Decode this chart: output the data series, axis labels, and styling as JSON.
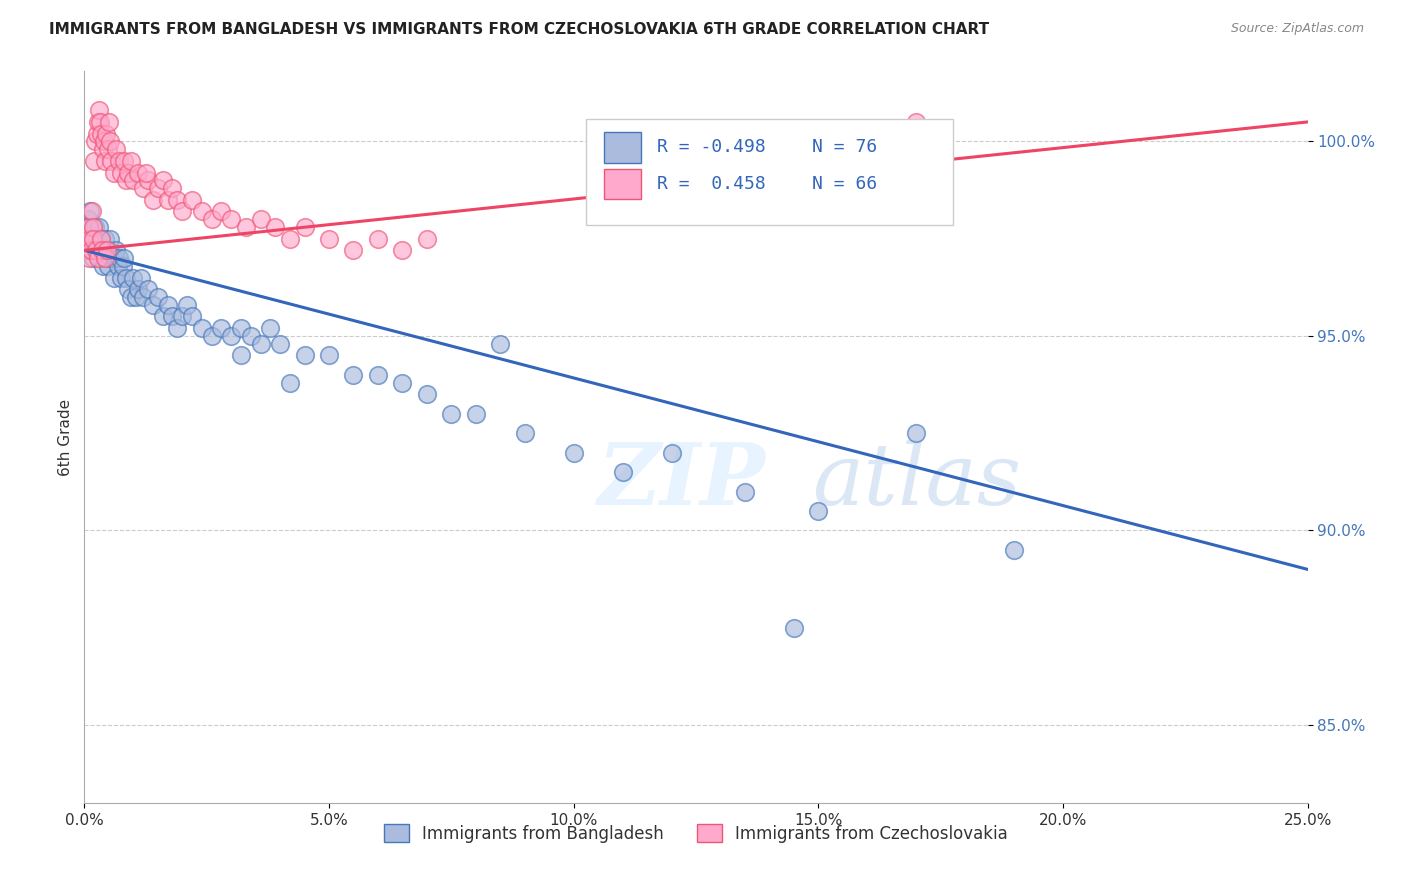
{
  "title": "IMMIGRANTS FROM BANGLADESH VS IMMIGRANTS FROM CZECHOSLOVAKIA 6TH GRADE CORRELATION CHART",
  "source": "Source: ZipAtlas.com",
  "ylabel": "6th Grade",
  "xlim": [
    0.0,
    25.0
  ],
  "ylim": [
    83.0,
    101.8
  ],
  "blue_R": -0.498,
  "blue_N": 76,
  "pink_R": 0.458,
  "pink_N": 66,
  "blue_color": "#AABBDD",
  "pink_color": "#FFAACC",
  "blue_edge_color": "#4477BB",
  "pink_edge_color": "#EE5577",
  "blue_line_color": "#3366BB",
  "pink_line_color": "#EE4466",
  "blue_label": "Immigrants from Bangladesh",
  "pink_label": "Immigrants from Czechoslovakia",
  "watermark_zip": "ZIP",
  "watermark_atlas": "atlas",
  "blue_scatter_x": [
    0.05,
    0.08,
    0.1,
    0.12,
    0.15,
    0.18,
    0.2,
    0.22,
    0.25,
    0.28,
    0.3,
    0.32,
    0.35,
    0.38,
    0.4,
    0.42,
    0.45,
    0.48,
    0.5,
    0.52,
    0.55,
    0.6,
    0.62,
    0.65,
    0.68,
    0.7,
    0.75,
    0.78,
    0.8,
    0.85,
    0.9,
    0.95,
    1.0,
    1.05,
    1.1,
    1.15,
    1.2,
    1.3,
    1.4,
    1.5,
    1.6,
    1.7,
    1.8,
    1.9,
    2.0,
    2.1,
    2.2,
    2.4,
    2.6,
    2.8,
    3.0,
    3.2,
    3.4,
    3.6,
    3.8,
    4.0,
    4.5,
    5.0,
    5.5,
    6.0,
    6.5,
    7.0,
    7.5,
    8.0,
    9.0,
    10.0,
    11.0,
    12.0,
    13.5,
    15.0,
    17.0,
    19.0,
    3.2,
    4.2,
    8.5,
    14.5
  ],
  "blue_scatter_y": [
    97.5,
    98.0,
    97.8,
    98.2,
    97.5,
    97.0,
    97.2,
    97.8,
    97.5,
    97.2,
    97.8,
    97.5,
    97.0,
    96.8,
    97.2,
    97.5,
    97.0,
    96.8,
    97.2,
    97.5,
    97.0,
    96.5,
    97.0,
    97.2,
    96.8,
    97.0,
    96.5,
    96.8,
    97.0,
    96.5,
    96.2,
    96.0,
    96.5,
    96.0,
    96.2,
    96.5,
    96.0,
    96.2,
    95.8,
    96.0,
    95.5,
    95.8,
    95.5,
    95.2,
    95.5,
    95.8,
    95.5,
    95.2,
    95.0,
    95.2,
    95.0,
    95.2,
    95.0,
    94.8,
    95.2,
    94.8,
    94.5,
    94.5,
    94.0,
    94.0,
    93.8,
    93.5,
    93.0,
    93.0,
    92.5,
    92.0,
    91.5,
    92.0,
    91.0,
    90.5,
    92.5,
    89.5,
    94.5,
    93.8,
    94.8,
    87.5
  ],
  "pink_scatter_x": [
    0.05,
    0.07,
    0.09,
    0.12,
    0.15,
    0.18,
    0.2,
    0.22,
    0.25,
    0.28,
    0.3,
    0.32,
    0.35,
    0.38,
    0.4,
    0.42,
    0.45,
    0.48,
    0.5,
    0.52,
    0.55,
    0.6,
    0.65,
    0.7,
    0.75,
    0.8,
    0.85,
    0.9,
    0.95,
    1.0,
    1.1,
    1.2,
    1.3,
    1.4,
    1.5,
    1.6,
    1.7,
    1.8,
    1.9,
    2.0,
    2.2,
    2.4,
    2.6,
    2.8,
    3.0,
    3.3,
    3.6,
    3.9,
    4.2,
    4.5,
    5.0,
    5.5,
    6.0,
    6.5,
    7.0,
    0.1,
    0.14,
    0.17,
    0.23,
    0.27,
    0.33,
    0.37,
    0.43,
    0.47,
    17.0,
    1.25
  ],
  "pink_scatter_y": [
    97.2,
    97.5,
    97.8,
    97.5,
    98.2,
    97.8,
    99.5,
    100.0,
    100.2,
    100.5,
    100.8,
    100.5,
    100.2,
    99.8,
    100.0,
    99.5,
    100.2,
    99.8,
    100.5,
    100.0,
    99.5,
    99.2,
    99.8,
    99.5,
    99.2,
    99.5,
    99.0,
    99.2,
    99.5,
    99.0,
    99.2,
    98.8,
    99.0,
    98.5,
    98.8,
    99.0,
    98.5,
    98.8,
    98.5,
    98.2,
    98.5,
    98.2,
    98.0,
    98.2,
    98.0,
    97.8,
    98.0,
    97.8,
    97.5,
    97.8,
    97.5,
    97.2,
    97.5,
    97.2,
    97.5,
    97.0,
    97.2,
    97.5,
    97.2,
    97.0,
    97.5,
    97.2,
    97.0,
    97.2,
    100.5,
    99.2
  ]
}
